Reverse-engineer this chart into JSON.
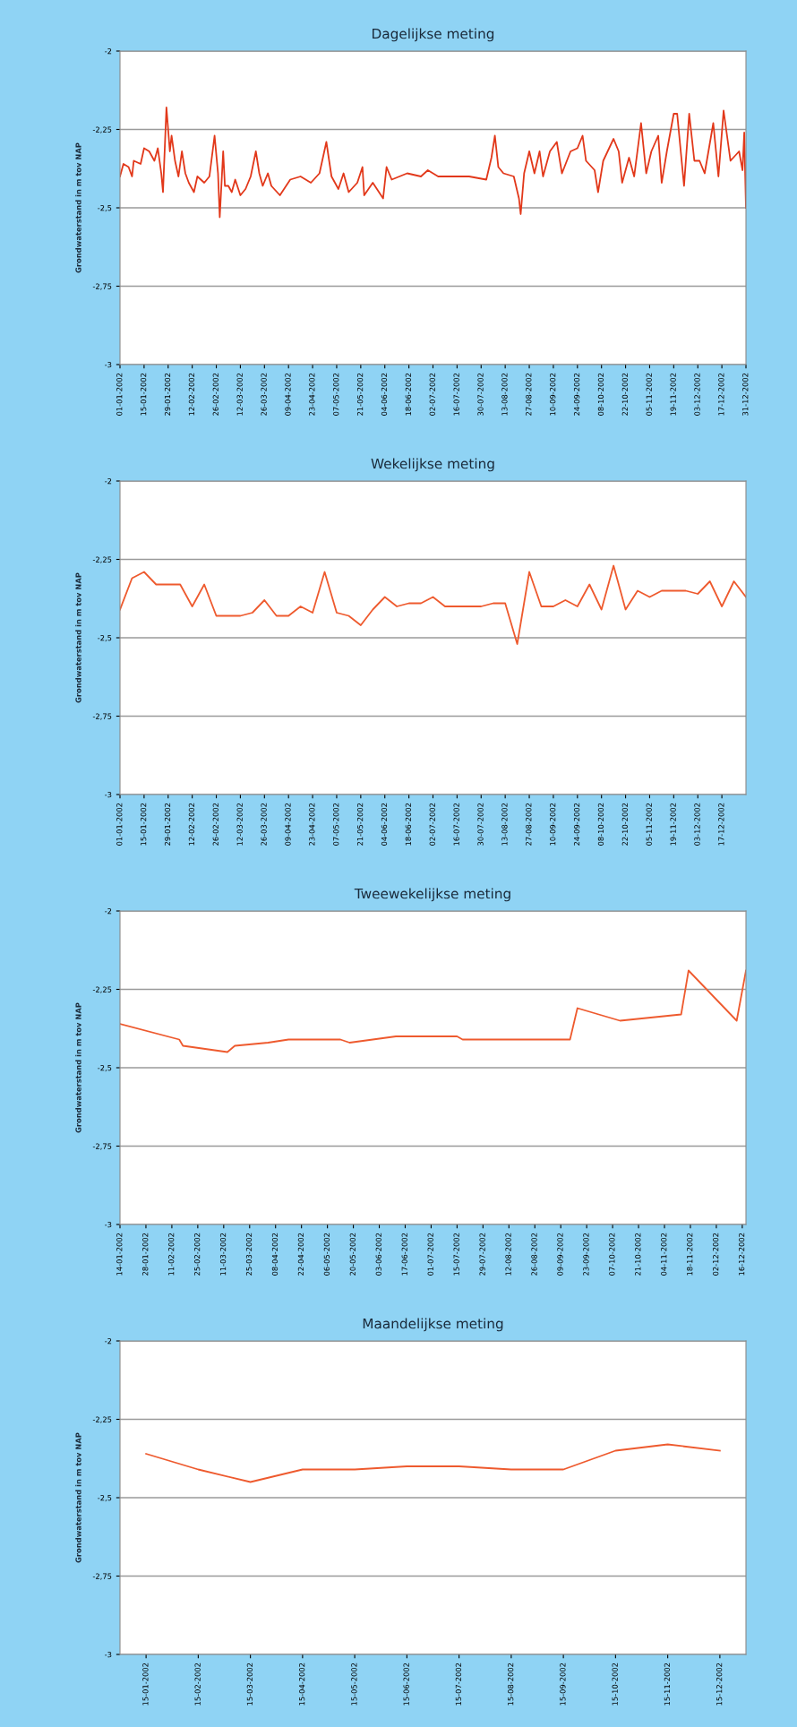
{
  "chart_data": [
    {
      "type": "line",
      "title": "Dagelijkse meting",
      "ylabel": "Grondwaterstand in m tov NAP",
      "color": "#e2381a",
      "grid": "y",
      "x": [
        "2002-01-01",
        "2002-01-03",
        "2002-01-06",
        "2002-01-08",
        "2002-01-09",
        "2002-01-13",
        "2002-01-15",
        "2002-01-18",
        "2002-01-21",
        "2002-01-23",
        "2002-01-25",
        "2002-01-26",
        "2002-01-28",
        "2002-01-30",
        "2002-01-31",
        "2002-02-02",
        "2002-02-04",
        "2002-02-06",
        "2002-02-08",
        "2002-02-10",
        "2002-02-13",
        "2002-02-15",
        "2002-02-19",
        "2002-02-22",
        "2002-02-25",
        "2002-02-27",
        "2002-02-28",
        "2002-03-02",
        "2002-03-03",
        "2002-03-05",
        "2002-03-07",
        "2002-03-09",
        "2002-03-12",
        "2002-03-15",
        "2002-03-18",
        "2002-03-21",
        "2002-03-23",
        "2002-03-25",
        "2002-03-28",
        "2002-03-30",
        "2002-04-04",
        "2002-04-10",
        "2002-04-16",
        "2002-04-22",
        "2002-04-27",
        "2002-05-01",
        "2002-05-04",
        "2002-05-08",
        "2002-05-11",
        "2002-05-14",
        "2002-05-19",
        "2002-05-22",
        "2002-05-23",
        "2002-05-28",
        "2002-06-03",
        "2002-06-05",
        "2002-06-08",
        "2002-06-17",
        "2002-06-25",
        "2002-06-29",
        "2002-07-05",
        "2002-07-14",
        "2002-07-23",
        "2002-08-02",
        "2002-08-05",
        "2002-08-07",
        "2002-08-09",
        "2002-08-12",
        "2002-08-18",
        "2002-08-21",
        "2002-08-22",
        "2002-08-24",
        "2002-08-27",
        "2002-08-30",
        "2002-09-02",
        "2002-09-04",
        "2002-09-08",
        "2002-09-12",
        "2002-09-15",
        "2002-09-20",
        "2002-09-24",
        "2002-09-27",
        "2002-09-29",
        "2002-10-04",
        "2002-10-06",
        "2002-10-09",
        "2002-10-15",
        "2002-10-18",
        "2002-10-20",
        "2002-10-24",
        "2002-10-27",
        "2002-10-31",
        "2002-11-03",
        "2002-11-06",
        "2002-11-10",
        "2002-11-12",
        "2002-11-15",
        "2002-11-19",
        "2002-11-21",
        "2002-11-25",
        "2002-11-28",
        "2002-12-01",
        "2002-12-04",
        "2002-12-07",
        "2002-12-12",
        "2002-12-15",
        "2002-12-18",
        "2002-12-22",
        "2002-12-27",
        "2002-12-29",
        "2002-12-30",
        "2002-12-31"
      ],
      "values": [
        -2.4,
        -2.36,
        -2.37,
        -2.4,
        -2.35,
        -2.36,
        -2.31,
        -2.32,
        -2.35,
        -2.31,
        -2.39,
        -2.45,
        -2.18,
        -2.32,
        -2.27,
        -2.35,
        -2.4,
        -2.32,
        -2.39,
        -2.42,
        -2.45,
        -2.4,
        -2.42,
        -2.4,
        -2.27,
        -2.39,
        -2.53,
        -2.32,
        -2.43,
        -2.43,
        -2.45,
        -2.41,
        -2.46,
        -2.44,
        -2.4,
        -2.32,
        -2.39,
        -2.43,
        -2.39,
        -2.43,
        -2.46,
        -2.41,
        -2.4,
        -2.42,
        -2.39,
        -2.29,
        -2.4,
        -2.44,
        -2.39,
        -2.45,
        -2.42,
        -2.37,
        -2.46,
        -2.42,
        -2.47,
        -2.37,
        -2.41,
        -2.39,
        -2.4,
        -2.38,
        -2.4,
        -2.4,
        -2.4,
        -2.41,
        -2.34,
        -2.27,
        -2.37,
        -2.39,
        -2.4,
        -2.47,
        -2.52,
        -2.39,
        -2.32,
        -2.39,
        -2.32,
        -2.4,
        -2.32,
        -2.29,
        -2.39,
        -2.32,
        -2.31,
        -2.27,
        -2.35,
        -2.38,
        -2.45,
        -2.35,
        -2.28,
        -2.32,
        -2.42,
        -2.34,
        -2.4,
        -2.23,
        -2.39,
        -2.32,
        -2.27,
        -2.42,
        -2.32,
        -2.2,
        -2.2,
        -2.43,
        -2.2,
        -2.35,
        -2.35,
        -2.39,
        -2.23,
        -2.4,
        -2.19,
        -2.35,
        -2.32,
        -2.38,
        -2.26,
        -2.5
      ],
      "xlim": [
        "2002-01-01",
        "2002-12-31"
      ],
      "xticks": [
        {
          "value": "2002-01-01",
          "label": "01-01-2002"
        },
        {
          "value": "2002-01-15",
          "label": "15-01-2002"
        },
        {
          "value": "2002-01-29",
          "label": "29-01-2002"
        },
        {
          "value": "2002-02-12",
          "label": "12-02-2002"
        },
        {
          "value": "2002-02-26",
          "label": "26-02-2002"
        },
        {
          "value": "2002-03-12",
          "label": "12-03-2002"
        },
        {
          "value": "2002-03-26",
          "label": "26-03-2002"
        },
        {
          "value": "2002-04-09",
          "label": "09-04-2002"
        },
        {
          "value": "2002-04-23",
          "label": "23-04-2002"
        },
        {
          "value": "2002-05-07",
          "label": "07-05-2002"
        },
        {
          "value": "2002-05-21",
          "label": "21-05-2002"
        },
        {
          "value": "2002-06-04",
          "label": "04-06-2002"
        },
        {
          "value": "2002-06-18",
          "label": "18-06-2002"
        },
        {
          "value": "2002-07-02",
          "label": "02-07-2002"
        },
        {
          "value": "2002-07-16",
          "label": "16-07-2002"
        },
        {
          "value": "2002-07-30",
          "label": "30-07-2002"
        },
        {
          "value": "2002-08-13",
          "label": "13-08-2002"
        },
        {
          "value": "2002-08-27",
          "label": "27-08-2002"
        },
        {
          "value": "2002-09-10",
          "label": "10-09-2002"
        },
        {
          "value": "2002-09-24",
          "label": "24-09-2002"
        },
        {
          "value": "2002-10-08",
          "label": "08-10-2002"
        },
        {
          "value": "2002-10-22",
          "label": "22-10-2002"
        },
        {
          "value": "2002-11-05",
          "label": "05-11-2002"
        },
        {
          "value": "2002-11-19",
          "label": "19-11-2002"
        },
        {
          "value": "2002-12-03",
          "label": "03-12-2002"
        },
        {
          "value": "2002-12-17",
          "label": "17-12-2002"
        },
        {
          "value": "2002-12-31",
          "label": "31-12-2002"
        }
      ],
      "ylim": [
        -3,
        -2
      ],
      "yticks": [
        {
          "value": -3,
          "label": "-3"
        },
        {
          "value": -2.75,
          "label": "-2,75"
        },
        {
          "value": -2.5,
          "label": "-2,5"
        },
        {
          "value": -2.25,
          "label": "-2,25"
        },
        {
          "value": -2,
          "label": "-2"
        }
      ]
    },
    {
      "type": "line",
      "title": "Wekelijkse meting",
      "ylabel": "Grondwaterstand in m tov NAP",
      "color": "#ee5a2e",
      "grid": "y",
      "x": [
        "2002-01-01",
        "2002-01-08",
        "2002-01-15",
        "2002-01-22",
        "2002-01-29",
        "2002-02-05",
        "2002-02-12",
        "2002-02-19",
        "2002-02-26",
        "2002-03-05",
        "2002-03-12",
        "2002-03-19",
        "2002-03-26",
        "2002-04-02",
        "2002-04-09",
        "2002-04-16",
        "2002-04-23",
        "2002-04-30",
        "2002-05-07",
        "2002-05-14",
        "2002-05-21",
        "2002-05-28",
        "2002-06-04",
        "2002-06-11",
        "2002-06-18",
        "2002-06-25",
        "2002-07-02",
        "2002-07-09",
        "2002-07-16",
        "2002-07-23",
        "2002-07-30",
        "2002-08-06",
        "2002-08-13",
        "2002-08-20",
        "2002-08-27",
        "2002-09-03",
        "2002-09-10",
        "2002-09-17",
        "2002-09-24",
        "2002-10-01",
        "2002-10-08",
        "2002-10-15",
        "2002-10-22",
        "2002-10-29",
        "2002-11-05",
        "2002-11-12",
        "2002-11-19",
        "2002-11-26",
        "2002-12-03",
        "2002-12-10",
        "2002-12-17",
        "2002-12-24",
        "2002-12-31"
      ],
      "values": [
        -2.41,
        -2.31,
        -2.29,
        -2.33,
        -2.33,
        -2.33,
        -2.4,
        -2.33,
        -2.43,
        -2.43,
        -2.43,
        -2.42,
        -2.38,
        -2.43,
        -2.43,
        -2.4,
        -2.42,
        -2.29,
        -2.42,
        -2.43,
        -2.46,
        -2.41,
        -2.37,
        -2.4,
        -2.39,
        -2.39,
        -2.37,
        -2.4,
        -2.4,
        -2.4,
        -2.4,
        -2.39,
        -2.39,
        -2.52,
        -2.29,
        -2.4,
        -2.4,
        -2.38,
        -2.4,
        -2.33,
        -2.41,
        -2.27,
        -2.41,
        -2.35,
        -2.37,
        -2.35,
        -2.35,
        -2.35,
        -2.36,
        -2.32,
        -2.4,
        -2.32,
        -2.37
      ],
      "xlim": [
        "2002-01-01",
        "2002-12-31"
      ],
      "xticks": [
        {
          "value": "2002-01-01",
          "label": "01-01-2002"
        },
        {
          "value": "2002-01-15",
          "label": "15-01-2002"
        },
        {
          "value": "2002-01-29",
          "label": "29-01-2002"
        },
        {
          "value": "2002-02-12",
          "label": "12-02-2002"
        },
        {
          "value": "2002-02-26",
          "label": "26-02-2002"
        },
        {
          "value": "2002-03-12",
          "label": "12-03-2002"
        },
        {
          "value": "2002-03-26",
          "label": "26-03-2002"
        },
        {
          "value": "2002-04-09",
          "label": "09-04-2002"
        },
        {
          "value": "2002-04-23",
          "label": "23-04-2002"
        },
        {
          "value": "2002-05-07",
          "label": "07-05-2002"
        },
        {
          "value": "2002-05-21",
          "label": "21-05-2002"
        },
        {
          "value": "2002-06-04",
          "label": "04-06-2002"
        },
        {
          "value": "2002-06-18",
          "label": "18-06-2002"
        },
        {
          "value": "2002-07-02",
          "label": "02-07-2002"
        },
        {
          "value": "2002-07-16",
          "label": "16-07-2002"
        },
        {
          "value": "2002-07-30",
          "label": "30-07-2002"
        },
        {
          "value": "2002-08-13",
          "label": "13-08-2002"
        },
        {
          "value": "2002-08-27",
          "label": "27-08-2002"
        },
        {
          "value": "2002-09-10",
          "label": "10-09-2002"
        },
        {
          "value": "2002-09-24",
          "label": "24-09-2002"
        },
        {
          "value": "2002-10-08",
          "label": "08-10-2002"
        },
        {
          "value": "2002-10-22",
          "label": "22-10-2002"
        },
        {
          "value": "2002-11-05",
          "label": "05-11-2002"
        },
        {
          "value": "2002-11-19",
          "label": "19-11-2002"
        },
        {
          "value": "2002-12-03",
          "label": "03-12-2002"
        },
        {
          "value": "2002-12-17",
          "label": "17-12-2002"
        }
      ],
      "ylim": [
        -3,
        -2
      ],
      "yticks": [
        {
          "value": -3,
          "label": "-3"
        },
        {
          "value": -2.75,
          "label": "-2,75"
        },
        {
          "value": -2.5,
          "label": "-2,5"
        },
        {
          "value": -2.25,
          "label": "-2,25"
        },
        {
          "value": -2,
          "label": "-2"
        }
      ]
    },
    {
      "type": "line",
      "title": "Tweewekelijkse meting",
      "ylabel": "Grondwaterstand in m tov NAP",
      "color": "#ee5a2e",
      "grid": "y",
      "x": [
        "2002-01-14",
        "2002-02-15",
        "2002-02-17",
        "2002-03-13",
        "2002-03-17",
        "2002-04-04",
        "2002-04-15",
        "2002-05-13",
        "2002-05-18",
        "2002-06-12",
        "2002-07-15",
        "2002-07-18",
        "2002-09-14",
        "2002-09-18",
        "2002-10-11",
        "2002-11-13",
        "2002-11-17",
        "2002-12-13",
        "2002-12-18"
      ],
      "values": [
        -2.36,
        -2.41,
        -2.43,
        -2.45,
        -2.43,
        -2.42,
        -2.41,
        -2.41,
        -2.42,
        -2.4,
        -2.4,
        -2.41,
        -2.41,
        -2.31,
        -2.35,
        -2.33,
        -2.19,
        -2.35,
        -2.19
      ],
      "xlim": [
        "2002-01-14",
        "2002-12-18"
      ],
      "xticks": [
        {
          "value": "2002-01-14",
          "label": "14-01-2002"
        },
        {
          "value": "2002-01-28",
          "label": "28-01-2002"
        },
        {
          "value": "2002-02-11",
          "label": "11-02-2002"
        },
        {
          "value": "2002-02-25",
          "label": "25-02-2002"
        },
        {
          "value": "2002-03-11",
          "label": "11-03-2002"
        },
        {
          "value": "2002-03-25",
          "label": "25-03-2002"
        },
        {
          "value": "2002-04-08",
          "label": "08-04-2002"
        },
        {
          "value": "2002-04-22",
          "label": "22-04-2002"
        },
        {
          "value": "2002-05-06",
          "label": "06-05-2002"
        },
        {
          "value": "2002-05-20",
          "label": "20-05-2002"
        },
        {
          "value": "2002-06-03",
          "label": "03-06-2002"
        },
        {
          "value": "2002-06-17",
          "label": "17-06-2002"
        },
        {
          "value": "2002-07-01",
          "label": "01-07-2002"
        },
        {
          "value": "2002-07-15",
          "label": "15-07-2002"
        },
        {
          "value": "2002-07-29",
          "label": "29-07-2002"
        },
        {
          "value": "2002-08-12",
          "label": "12-08-2002"
        },
        {
          "value": "2002-08-26",
          "label": "26-08-2002"
        },
        {
          "value": "2002-09-09",
          "label": "09-09-2002"
        },
        {
          "value": "2002-09-23",
          "label": "23-09-2002"
        },
        {
          "value": "2002-10-07",
          "label": "07-10-2002"
        },
        {
          "value": "2002-10-21",
          "label": "21-10-2002"
        },
        {
          "value": "2002-11-04",
          "label": "04-11-2002"
        },
        {
          "value": "2002-11-18",
          "label": "18-11-2002"
        },
        {
          "value": "2002-12-02",
          "label": "02-12-2002"
        },
        {
          "value": "2002-12-16",
          "label": "16-12-2002"
        }
      ],
      "ylim": [
        -3,
        -2
      ],
      "yticks": [
        {
          "value": -3,
          "label": "-3"
        },
        {
          "value": -2.75,
          "label": "-2,75"
        },
        {
          "value": -2.5,
          "label": "-2,5"
        },
        {
          "value": -2.25,
          "label": "-2,25"
        },
        {
          "value": -2,
          "label": "-2"
        }
      ]
    },
    {
      "type": "line",
      "title": "Maandelijkse meting",
      "ylabel": "Grondwaterstand in m tov NAP",
      "color": "#ee5a2e",
      "grid": "y",
      "categories": [
        "15-01-2002",
        "15-02-2002",
        "15-03-2002",
        "15-04-2002",
        "15-05-2002",
        "15-06-2002",
        "15-07-2002",
        "15-08-2002",
        "15-09-2002",
        "15-10-2002",
        "15-11-2002",
        "15-12-2002"
      ],
      "values": [
        -2.36,
        -2.41,
        -2.45,
        -2.41,
        -2.41,
        -2.4,
        -2.4,
        -2.41,
        -2.41,
        -2.35,
        -2.33,
        -2.35
      ],
      "ylim": [
        -3,
        -2
      ],
      "yticks": [
        {
          "value": -3,
          "label": "-3"
        },
        {
          "value": -2.75,
          "label": "-2,75"
        },
        {
          "value": -2.5,
          "label": "-2,5"
        },
        {
          "value": -2.25,
          "label": "-2,25"
        },
        {
          "value": -2,
          "label": "-2"
        }
      ]
    }
  ]
}
